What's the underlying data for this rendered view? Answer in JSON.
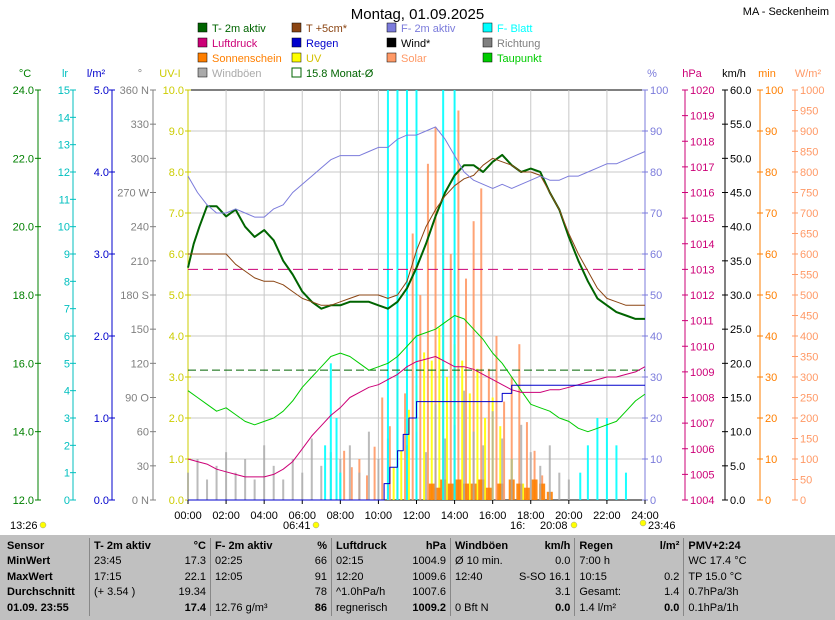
{
  "header": {
    "title": "Montag, 01.09.2025",
    "station": "MA - Seckenheim"
  },
  "legend": [
    {
      "label": "T- 2m aktiv",
      "color": "#006400",
      "type": "box"
    },
    {
      "label": "T +5cm*",
      "color": "#8b4513",
      "type": "box"
    },
    {
      "label": "F- 2m aktiv",
      "color": "#7b7bdb",
      "type": "box"
    },
    {
      "label": "F- Blatt",
      "color": "#00ffff",
      "type": "box"
    },
    {
      "label": "Luftdruck",
      "color": "#cc0077",
      "type": "box"
    },
    {
      "label": "Regen",
      "color": "#0000cc",
      "type": "box"
    },
    {
      "label": "Wind*",
      "color": "#000000",
      "type": "box"
    },
    {
      "label": "Richtung",
      "color": "#808080",
      "type": "box"
    },
    {
      "label": "Sonnenschein",
      "color": "#ff7f00",
      "type": "box"
    },
    {
      "label": "UV",
      "color": "#ffff00",
      "type": "box"
    },
    {
      "label": "Solar",
      "color": "#ff9966",
      "type": "box"
    },
    {
      "label": "Taupunkt",
      "color": "#00cc00",
      "type": "box"
    },
    {
      "label": "Windböen",
      "color": "#aaaaaa",
      "type": "box"
    },
    {
      "label": "15.8 Monat-Ø",
      "color": "#006400",
      "type": "outline"
    }
  ],
  "axes": {
    "temp": {
      "unit": "°C",
      "color": "#008000",
      "ticks": [
        "24.0",
        "22.0",
        "20.0",
        "18.0",
        "16.0",
        "14.0",
        "12.0"
      ]
    },
    "lr": {
      "unit": "lr",
      "color": "#00bfbf",
      "ticks": [
        "15",
        "14",
        "13",
        "12",
        "11",
        "10",
        "9",
        "8",
        "7",
        "6",
        "5",
        "4",
        "3",
        "2",
        "1",
        "0"
      ]
    },
    "rain": {
      "unit": "l/m²",
      "color": "#0000cc",
      "ticks": [
        "5.0",
        "4.0",
        "3.0",
        "2.0",
        "1.0",
        "0.0"
      ]
    },
    "dir": {
      "unit": "°",
      "color": "#808080",
      "ticks": [
        "360 N",
        "330",
        "300",
        "270 W",
        "240",
        "210",
        "180 S",
        "150",
        "120",
        "90 O",
        "60",
        "30",
        "0 N"
      ]
    },
    "uv": {
      "unit": "UV-I",
      "color": "#cccc00",
      "ticks": [
        "10.0",
        "9.0",
        "8.0",
        "7.0",
        "6.0",
        "5.0",
        "4.0",
        "3.0",
        "2.0",
        "1.0",
        "0.0"
      ]
    },
    "hum": {
      "unit": "%",
      "color": "#7b7bdb",
      "ticks": [
        "100",
        "90",
        "80",
        "70",
        "60",
        "50",
        "40",
        "30",
        "20",
        "10",
        "0"
      ]
    },
    "press": {
      "unit": "hPa",
      "color": "#cc0077",
      "ticks": [
        "1020",
        "1019",
        "1018",
        "1017",
        "1016",
        "1015",
        "1014",
        "1013",
        "1012",
        "1011",
        "1010",
        "1009",
        "1008",
        "1007",
        "1006",
        "1005",
        "1004"
      ]
    },
    "wind": {
      "unit": "km/h",
      "color": "#000000",
      "ticks": [
        "60.0",
        "55.0",
        "50.0",
        "45.0",
        "40.0",
        "35.0",
        "30.0",
        "25.0",
        "20.0",
        "15.0",
        "10.0",
        "5.0",
        "0.0"
      ]
    },
    "min": {
      "unit": "min",
      "color": "#ff7f00",
      "ticks": [
        "100",
        "90",
        "80",
        "70",
        "60",
        "50",
        "40",
        "30",
        "20",
        "10",
        "0"
      ]
    },
    "solar": {
      "unit": "W/m²",
      "color": "#ff9966",
      "ticks": [
        "1000",
        "950",
        "900",
        "850",
        "800",
        "750",
        "700",
        "650",
        "600",
        "550",
        "500",
        "450",
        "400",
        "350",
        "300",
        "250",
        "200",
        "150",
        "100",
        "50",
        "0"
      ]
    },
    "time": {
      "ticks": [
        "00:00",
        "02:00",
        "04:00",
        "06:00",
        "08:00",
        "10:00",
        "12:00",
        "14:00",
        "16:00",
        "18:00",
        "20:00",
        "22:00",
        "24:00"
      ]
    }
  },
  "astro": {
    "moonrise": "13:26",
    "sunrise": "06:41",
    "sunset": "20:08",
    "moonset": "23:46",
    "noon_mark": "16:"
  },
  "chart_data": {
    "type": "line",
    "x_unit": "hour",
    "xlim": [
      0,
      24
    ],
    "series": [
      {
        "name": "T- 2m aktiv",
        "color": "#006400",
        "width": 2,
        "ylim": [
          12,
          24
        ],
        "x": [
          0,
          0.3,
          0.6,
          1,
          1.5,
          2,
          2.5,
          3,
          3.5,
          4,
          4.5,
          5,
          5.5,
          6,
          6.5,
          7,
          7.5,
          8,
          8.5,
          9,
          9.5,
          10,
          10.5,
          11,
          11.5,
          12,
          12.5,
          13,
          13.5,
          14,
          14.5,
          15,
          15.5,
          16,
          16.5,
          17,
          17.5,
          18,
          18.5,
          19,
          19.5,
          20,
          20.5,
          21,
          21.5,
          22,
          22.5,
          23,
          23.5,
          24
        ],
        "y": [
          18.8,
          19.5,
          20.0,
          20.6,
          20.6,
          20.3,
          20.5,
          20.0,
          19.7,
          19.9,
          19.6,
          19.0,
          18.6,
          18.1,
          17.8,
          17.6,
          17.7,
          17.7,
          17.8,
          17.8,
          17.8,
          17.7,
          17.6,
          17.8,
          18.2,
          18.8,
          19.5,
          20.3,
          21.0,
          21.5,
          21.8,
          21.8,
          21.6,
          21.9,
          22.1,
          21.8,
          21.6,
          21.7,
          21.6,
          21.0,
          20.5,
          19.7,
          19.0,
          18.4,
          17.9,
          17.7,
          17.5,
          17.4,
          17.3,
          17.3
        ]
      },
      {
        "name": "T +5cm*",
        "color": "#8b4513",
        "width": 1,
        "ylim": [
          12,
          24
        ],
        "x": [
          0,
          0.5,
          1,
          1.5,
          2,
          2.5,
          3,
          3.5,
          4,
          4.5,
          5,
          5.5,
          6,
          6.5,
          7,
          7.5,
          8,
          8.5,
          9,
          9.5,
          10,
          10.5,
          11,
          11.5,
          12,
          12.5,
          13,
          13.5,
          14,
          14.5,
          15,
          15.5,
          16,
          16.5,
          17,
          17.5,
          18,
          18.5,
          19,
          19.5,
          20,
          20.5,
          21,
          21.5,
          22,
          22.5,
          23,
          23.5,
          24
        ],
        "y": [
          19.2,
          19.2,
          19.2,
          19.2,
          19.2,
          18.9,
          18.7,
          18.5,
          18.4,
          18.4,
          18.3,
          18.1,
          17.9,
          17.8,
          17.7,
          17.7,
          17.8,
          17.9,
          18.0,
          18.0,
          18.0,
          17.9,
          18.0,
          18.4,
          19.3,
          20.0,
          20.5,
          20.9,
          21.2,
          21.4,
          21.5,
          21.8,
          22.0,
          21.9,
          21.8,
          21.6,
          21.6,
          21.5,
          21.0,
          20.5,
          19.8,
          19.2,
          18.7,
          18.2,
          17.9,
          17.8,
          17.7,
          17.7,
          17.7
        ]
      },
      {
        "name": "F- 2m aktiv",
        "color": "#7b7bdb",
        "width": 1,
        "ylim": [
          0,
          100
        ],
        "x": [
          0,
          0.5,
          1,
          1.5,
          2,
          2.5,
          3,
          3.5,
          4,
          4.5,
          5,
          5.5,
          6,
          6.5,
          7,
          7.5,
          8,
          8.5,
          9,
          9.5,
          10,
          10.5,
          11,
          11.5,
          12,
          12.5,
          13,
          13.5,
          14,
          14.5,
          15,
          15.5,
          16,
          16.5,
          17,
          17.5,
          18,
          18.5,
          19,
          19.5,
          20,
          20.5,
          21,
          21.5,
          22,
          22.5,
          23,
          23.5,
          24
        ],
        "y": [
          79,
          75,
          72,
          70,
          70,
          71,
          70,
          69,
          69,
          71,
          72,
          75,
          77,
          79,
          81,
          83,
          84,
          84,
          84,
          85,
          86,
          86,
          88,
          89,
          89,
          90,
          91,
          88,
          84,
          80,
          78,
          77,
          76,
          77,
          76,
          77,
          78,
          79,
          78,
          78,
          79,
          79,
          80,
          81,
          82,
          82,
          83,
          84,
          85
        ]
      },
      {
        "name": "Taupunkt",
        "color": "#00cc00",
        "width": 1,
        "ylim": [
          12,
          24
        ],
        "x": [
          0,
          0.5,
          1,
          1.5,
          2,
          2.5,
          3,
          3.5,
          4,
          4.5,
          5,
          5.5,
          6,
          6.5,
          7,
          7.5,
          8,
          8.5,
          9,
          9.5,
          10,
          10.5,
          11,
          11.5,
          12,
          12.5,
          13,
          13.5,
          14,
          14.5,
          15,
          15.5,
          16,
          16.5,
          17,
          17.5,
          18,
          18.5,
          19,
          19.5,
          20,
          20.5,
          21,
          21.5,
          22,
          22.5,
          23,
          23.5,
          24
        ],
        "y": [
          15.2,
          15.0,
          14.8,
          14.6,
          14.7,
          14.5,
          14.3,
          14.2,
          14.3,
          14.4,
          14.6,
          14.9,
          15.3,
          15.6,
          15.9,
          16.2,
          16.3,
          16.2,
          16.0,
          15.8,
          15.9,
          16.0,
          16.2,
          16.5,
          16.8,
          16.9,
          17.0,
          17.2,
          17.4,
          17.3,
          17.0,
          16.7,
          16.3,
          16.0,
          15.6,
          15.2,
          14.8,
          14.7,
          14.6,
          14.4,
          14.3,
          14.1,
          14.0,
          14.1,
          14.2,
          14.3,
          14.6,
          14.9,
          15.1
        ]
      },
      {
        "name": "Luftdruck",
        "color": "#cc0077",
        "width": 1,
        "ylim": [
          1004,
          1020
        ],
        "x": [
          0,
          0.5,
          1,
          1.5,
          2,
          2.5,
          3,
          3.5,
          4,
          4.5,
          5,
          5.5,
          6,
          6.5,
          7,
          7.5,
          8,
          8.5,
          9,
          9.5,
          10,
          10.5,
          11,
          11.5,
          12,
          12.5,
          13,
          13.5,
          14,
          14.5,
          15,
          15.5,
          16,
          16.5,
          17,
          17.5,
          18,
          18.5,
          19,
          19.5,
          20,
          20.5,
          21,
          21.5,
          22,
          22.5,
          23,
          23.5,
          24
        ],
        "y": [
          1005.6,
          1005.5,
          1005.4,
          1005.2,
          1005.1,
          1005.0,
          1004.9,
          1004.9,
          1004.9,
          1005.0,
          1005.2,
          1005.5,
          1006.0,
          1006.5,
          1006.9,
          1007.3,
          1007.6,
          1008.0,
          1008.2,
          1008.4,
          1008.5,
          1008.7,
          1008.9,
          1009.2,
          1009.4,
          1009.5,
          1009.6,
          1009.4,
          1009.2,
          1009.2,
          1009.1,
          1008.9,
          1008.7,
          1008.5,
          1008.3,
          1008.2,
          1008.2,
          1008.2,
          1008.3,
          1008.3,
          1008.4,
          1008.5,
          1008.6,
          1008.7,
          1008.8,
          1008.8,
          1008.9,
          1009.0,
          1009.2
        ]
      },
      {
        "name": "Regen",
        "color": "#0000cc",
        "width": 1,
        "ylim": [
          0,
          5
        ],
        "step": true,
        "x": [
          0,
          10.0,
          10.3,
          10.6,
          11.0,
          11.3,
          11.6,
          12.0,
          15.0,
          16.0,
          16.5,
          17.0,
          24
        ],
        "y": [
          0,
          0,
          0.2,
          0.4,
          0.6,
          0.8,
          1.0,
          1.2,
          1.2,
          1.2,
          1.3,
          1.4,
          1.4
        ]
      }
    ],
    "bars": [
      {
        "name": "Solar",
        "color": "#ff9966",
        "ylim": [
          0,
          1000
        ],
        "x": [
          8.2,
          8.6,
          9,
          9.4,
          9.8,
          10.2,
          10.6,
          11,
          11.4,
          11.8,
          12.2,
          12.6,
          13,
          13.4,
          13.8,
          14.2,
          14.6,
          15,
          15.4,
          15.8,
          16.2,
          16.6,
          17,
          17.4,
          17.8,
          18.2,
          18.6
        ],
        "y": [
          120,
          80,
          100,
          60,
          130,
          250,
          180,
          400,
          260,
          650,
          500,
          820,
          910,
          700,
          600,
          950,
          540,
          680,
          760,
          320,
          400,
          240,
          300,
          380,
          190,
          120,
          60
        ]
      },
      {
        "name": "UV",
        "color": "#ffff00",
        "ylim": [
          0,
          10
        ],
        "x": [
          10.8,
          11.2,
          11.6,
          12,
          12.4,
          12.8,
          13.2,
          13.6,
          14,
          14.4,
          14.8,
          15.2,
          15.6,
          16,
          16.4,
          17,
          17.6
        ],
        "y": [
          0.8,
          1.2,
          2.2,
          2.8,
          3.6,
          3.4,
          4.2,
          3.0,
          3.8,
          3.4,
          2.6,
          3.2,
          2.0,
          2.5,
          1.8,
          1.0,
          0.4
        ]
      },
      {
        "name": "Sonnenschein",
        "color": "#ff7f00",
        "ylim": [
          0,
          100
        ],
        "x": [
          12.8,
          13.1,
          13.4,
          13.8,
          14.2,
          14.6,
          15.0,
          15.4,
          15.8,
          16.4,
          17.0,
          17.4,
          17.8,
          18.2,
          18.6,
          19.0
        ],
        "y": [
          4,
          3,
          5,
          4,
          5,
          4,
          4,
          5,
          3,
          4,
          5,
          4,
          3,
          5,
          4,
          2
        ]
      },
      {
        "name": "Windböen",
        "color": "#aaaaaa",
        "ylim": [
          0,
          60
        ],
        "x": [
          0,
          0.5,
          1,
          1.5,
          2,
          2.5,
          3,
          3.5,
          4,
          4.5,
          5,
          5.5,
          6,
          6.5,
          7,
          7.5,
          8,
          8.5,
          9,
          9.5,
          10,
          10.5,
          11,
          11.5,
          12,
          12.5,
          13,
          13.5,
          14,
          14.5,
          15,
          15.5,
          16,
          16.5,
          17,
          17.5,
          18,
          18.5,
          19,
          19.5,
          20
        ],
        "y": [
          4,
          6,
          3,
          5,
          7,
          4,
          6,
          3,
          8,
          5,
          3,
          6,
          4,
          9,
          5,
          7,
          6,
          8,
          4,
          10,
          6,
          9,
          12,
          8,
          10,
          7,
          14,
          9,
          11,
          16,
          10,
          8,
          13,
          9,
          6,
          11,
          7,
          5,
          8,
          4,
          3
        ]
      },
      {
        "name": "F- Blatt",
        "color": "#00ffff",
        "ylim": [
          0,
          15
        ],
        "x": [
          7.2,
          7.5,
          7.8,
          8.0,
          10.5,
          11.0,
          11.5,
          12.0,
          13.4,
          14.0,
          20.6,
          21.0,
          21.5,
          22.0,
          22.5,
          23.0
        ],
        "y": [
          2,
          5,
          3,
          1,
          15,
          15,
          15,
          15,
          15,
          15,
          1,
          2,
          3,
          3,
          2,
          1
        ]
      }
    ],
    "reference_lines": [
      {
        "name": "15.8 Monat-Ø",
        "color": "#006400",
        "axis": "temp",
        "value": 15.8,
        "dash": "8,4"
      },
      {
        "name": "Luftdruck Mittel",
        "color": "#cc0077",
        "axis": "press",
        "value": 1013.0,
        "dash": "10,5"
      }
    ]
  },
  "stats": {
    "headers": [
      "Sensor",
      "T- 2m aktiv",
      "°C",
      "F- 2m aktiv",
      "%",
      "Luftdruck",
      "hPa",
      "Windböen",
      "km/h",
      "Regen",
      "l/m²",
      "PMV+2:24"
    ],
    "rows": [
      [
        "MinWert",
        "23:45",
        "17.3",
        "02:25",
        "66",
        "02:15",
        "1004.9",
        "Ø 10 min.",
        "0.0",
        "7:00 h",
        "",
        "WC 17.4 °C"
      ],
      [
        "MaxWert",
        "17:15",
        "22.1",
        "12:05",
        "91",
        "12:20",
        "1009.6",
        "12:40",
        "S-SO 16.1",
        "10:15",
        "0.2",
        "TP 15.0 °C"
      ],
      [
        "Durchschnitt",
        "(+ 3.54 )",
        "19.34",
        "",
        "78",
        "^1.0hPa/h",
        "1007.6",
        "",
        "3.1",
        "Gesamt:",
        "1.4",
        "0.7hPa/3h"
      ],
      [
        "01.09. 23:55",
        "",
        "17.4",
        "12.76 g/m³",
        "86",
        "regnerisch",
        "1009.2",
        "0 Bft N",
        "0.0",
        "1.4 l/m²",
        "0.0",
        "0.1hPa/1h"
      ]
    ]
  }
}
